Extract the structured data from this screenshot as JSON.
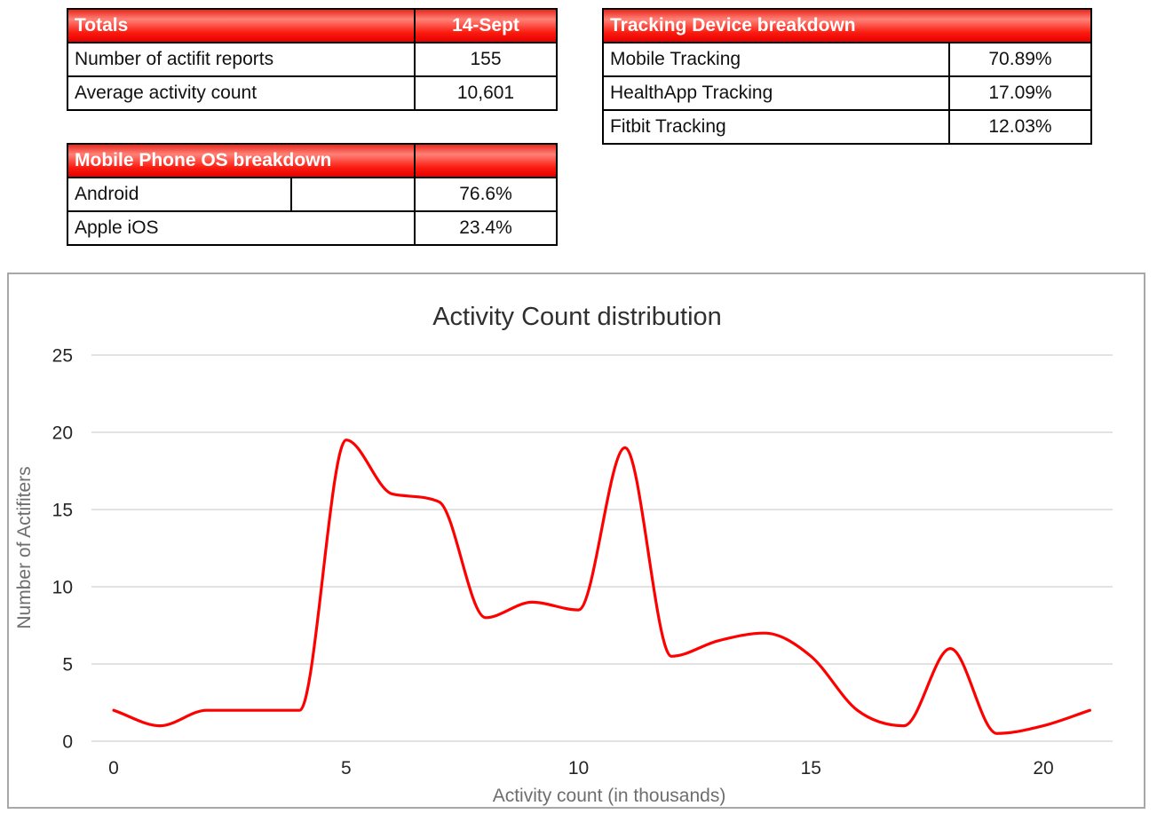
{
  "tables": {
    "totals": {
      "header": {
        "label": "Totals",
        "value": "14-Sept"
      },
      "rows": [
        {
          "label": "Number of actifit reports",
          "value": "155"
        },
        {
          "label": "Average activity count",
          "value": "10,601"
        }
      ]
    },
    "tracking": {
      "header": {
        "label": "Tracking Device breakdown"
      },
      "rows": [
        {
          "label": "Mobile Tracking",
          "value": "70.89%"
        },
        {
          "label": "HealthApp Tracking",
          "value": "17.09%"
        },
        {
          "label": "Fitbit Tracking",
          "value": "12.03%"
        }
      ]
    },
    "os": {
      "header": {
        "label": "Mobile Phone OS breakdown",
        "value": ""
      },
      "rows": [
        {
          "label": "Android",
          "value": "76.6%"
        },
        {
          "label": "Apple iOS",
          "value": "23.4%"
        }
      ]
    }
  },
  "colors": {
    "header_red_top": "#e8281e",
    "header_red_highlight": "#ff8177",
    "header_red_bottom": "#e60000",
    "table_border": "#000000",
    "line_red": "#ff0000",
    "gridline": "#d9d9d9",
    "chart_border": "#a8a8a8",
    "tick_text": "#262626",
    "axis_title_text": "#6e6e6e",
    "chart_title_text": "#303030"
  },
  "chart_data": {
    "type": "line",
    "title": "Activity Count distribution",
    "xlabel": "Activity count (in thousands)",
    "ylabel": "Number of Actifiters",
    "x": [
      0,
      1,
      2,
      3,
      4,
      5,
      6,
      7,
      8,
      9,
      10,
      11,
      12,
      13,
      14,
      15,
      16,
      17,
      18,
      19,
      20,
      21
    ],
    "values": [
      2,
      1,
      2,
      2,
      2,
      19.5,
      16,
      15.5,
      8,
      9,
      8.5,
      19,
      5.5,
      6.5,
      7,
      5.5,
      2,
      1,
      6,
      0.5,
      1,
      2
    ],
    "series_name": "Number of Actifiters",
    "xlim": [
      -0.5,
      21.5
    ],
    "ylim": [
      0,
      25
    ],
    "xticks": [
      0,
      5,
      10,
      15,
      20
    ],
    "yticks": [
      0,
      5,
      10,
      15,
      20,
      25
    ],
    "grid": "horizontal",
    "legend": "none",
    "smooth": true,
    "line_color": "#ff0000"
  }
}
